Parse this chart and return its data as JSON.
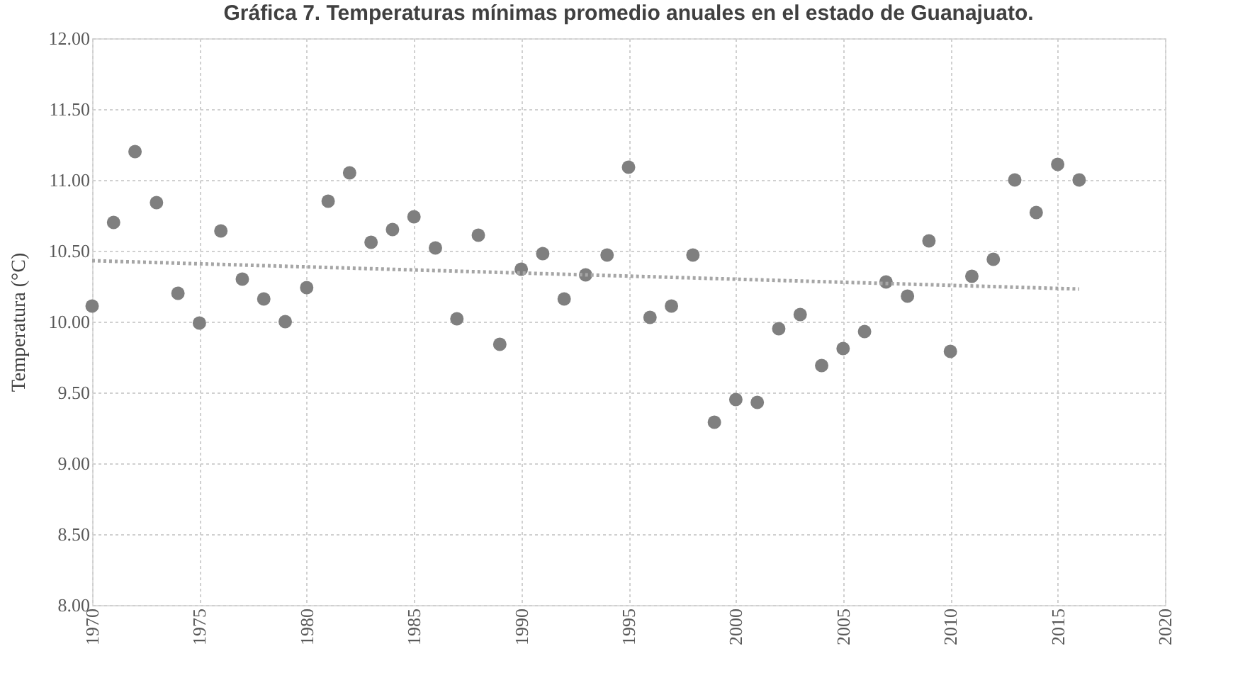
{
  "chart_data": {
    "type": "scatter",
    "title": "Gráfica 7. Temperaturas mínimas promedio anuales en el estado de Guanajuato.",
    "ylabel": "Temperatura (°C)",
    "x": [
      1970,
      1971,
      1972,
      1973,
      1974,
      1975,
      1976,
      1977,
      1978,
      1979,
      1980,
      1981,
      1982,
      1983,
      1984,
      1985,
      1986,
      1987,
      1988,
      1989,
      1990,
      1991,
      1992,
      1993,
      1994,
      1995,
      1996,
      1997,
      1998,
      1999,
      2000,
      2001,
      2002,
      2003,
      2004,
      2005,
      2006,
      2007,
      2008,
      2009,
      2010,
      2011,
      2012,
      2013,
      2014,
      2015,
      2016
    ],
    "series": [
      {
        "type": "scatter",
        "color": "#7f7f7f",
        "marker": "circle",
        "values": [
          10.11,
          10.7,
          11.2,
          10.84,
          10.2,
          9.99,
          10.64,
          10.3,
          10.16,
          10.0,
          10.24,
          10.85,
          11.05,
          10.56,
          10.65,
          10.74,
          10.52,
          10.02,
          10.61,
          9.84,
          10.37,
          10.48,
          10.16,
          10.33,
          10.47,
          11.09,
          10.03,
          10.11,
          10.47,
          9.29,
          9.45,
          9.43,
          9.95,
          10.05,
          9.69,
          9.81,
          9.93,
          10.28,
          10.18,
          10.57,
          9.79,
          10.32,
          10.44,
          11.0,
          10.77,
          11.11,
          11.0
        ]
      },
      {
        "type": "line",
        "color": "#a6a6a6",
        "line_style": "dotted",
        "x": [
          1970,
          2016
        ],
        "values": [
          10.43,
          10.23
        ]
      }
    ],
    "xlim": [
      1970,
      2020
    ],
    "xticks": [
      1970,
      1975,
      1980,
      1985,
      1990,
      1995,
      2000,
      2005,
      2010,
      2015,
      2020
    ],
    "ylim": [
      8,
      12
    ],
    "yticks": [
      {
        "value": 8,
        "label": "8.00"
      },
      {
        "value": 8.5,
        "label": "8.50"
      },
      {
        "value": 9,
        "label": "9.00"
      },
      {
        "value": 9.5,
        "label": "9.50"
      },
      {
        "value": 10,
        "label": "10.00"
      },
      {
        "value": 10.5,
        "label": "10.50"
      },
      {
        "value": 11,
        "label": "11.00"
      },
      {
        "value": 11.5,
        "label": "11.50"
      },
      {
        "value": 12,
        "label": "12.00"
      }
    ],
    "grid": true
  }
}
